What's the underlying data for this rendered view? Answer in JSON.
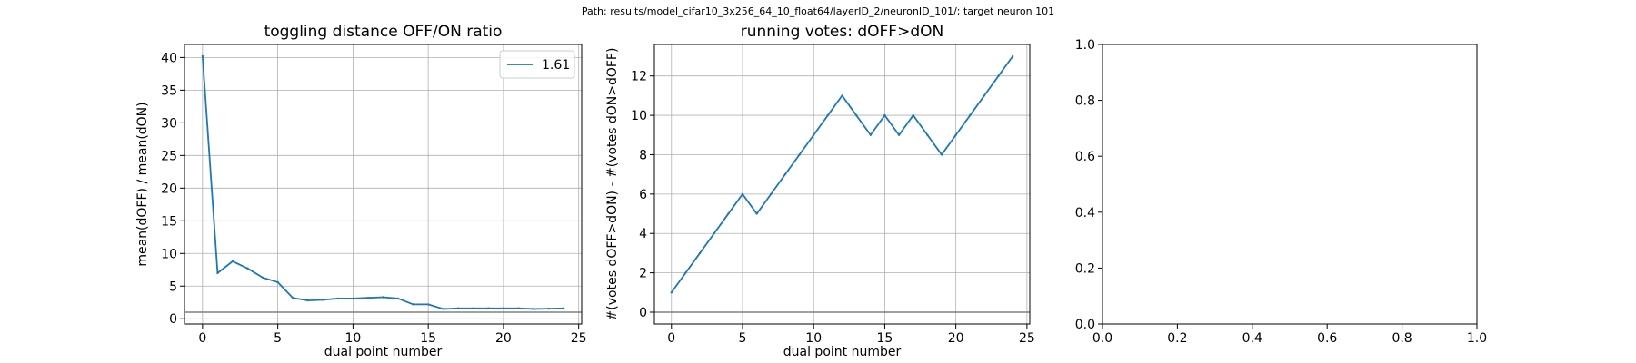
{
  "suptitle": "Path: results/model_cifar10_3x256_64_10_float64/layerID_2/neuronID_101/; target neuron 101",
  "chart_data": [
    {
      "type": "line",
      "title": "toggling distance OFF/ON ratio",
      "xlabel": "dual point number",
      "ylabel": "mean(dOFF) / mean(dON)",
      "xlim": [
        -1.2,
        25.2
      ],
      "ylim": [
        -0.8,
        42
      ],
      "xticks": [
        0,
        5,
        10,
        15,
        20,
        25
      ],
      "yticks": [
        0,
        5,
        10,
        15,
        20,
        25,
        30,
        35,
        40
      ],
      "grid": true,
      "hline": {
        "y": 1,
        "color": "#808080"
      },
      "legend": {
        "placement": "top-right",
        "entries": [
          "1.61"
        ]
      },
      "series": [
        {
          "name": "1.61",
          "color": "#1f77b4",
          "x": [
            0,
            1,
            2,
            3,
            4,
            5,
            6,
            7,
            8,
            9,
            10,
            11,
            12,
            13,
            14,
            15,
            16,
            17,
            18,
            19,
            20,
            21,
            22,
            23,
            24
          ],
          "y": [
            40.2,
            7.0,
            8.8,
            7.7,
            6.3,
            5.6,
            3.2,
            2.8,
            2.9,
            3.1,
            3.1,
            3.2,
            3.3,
            3.1,
            2.2,
            2.2,
            1.5,
            1.6,
            1.6,
            1.6,
            1.6,
            1.6,
            1.5,
            1.55,
            1.6
          ]
        }
      ]
    },
    {
      "type": "line",
      "title": "running votes: dOFF>dON",
      "xlabel": "dual point number",
      "ylabel": "#(votes dOFF>dON) - #(votes dON>dOFF)",
      "xlim": [
        -1.2,
        25.2
      ],
      "ylim": [
        -0.6,
        13.6
      ],
      "xticks": [
        0,
        5,
        10,
        15,
        20,
        25
      ],
      "yticks": [
        0,
        2,
        4,
        6,
        8,
        10,
        12
      ],
      "grid": true,
      "hline": {
        "y": 0,
        "color": "#808080"
      },
      "series": [
        {
          "color": "#1f77b4",
          "x": [
            0,
            1,
            2,
            3,
            4,
            5,
            6,
            7,
            8,
            9,
            10,
            11,
            12,
            13,
            14,
            15,
            16,
            17,
            18,
            19,
            20,
            21,
            22,
            23,
            24
          ],
          "y": [
            1,
            2,
            3,
            4,
            5,
            6,
            5,
            6,
            7,
            8,
            9,
            10,
            11,
            10,
            9,
            10,
            9,
            10,
            9,
            8,
            9,
            10,
            11,
            12,
            13
          ]
        }
      ]
    },
    {
      "type": "line",
      "title": "",
      "xlim": [
        0,
        1
      ],
      "ylim": [
        0,
        1
      ],
      "xticks": [
        "0.0",
        "0.2",
        "0.4",
        "0.6",
        "0.8",
        "1.0"
      ],
      "yticks": [
        "0.0",
        "0.2",
        "0.4",
        "0.6",
        "0.8",
        "1.0"
      ],
      "grid": false,
      "series": []
    }
  ]
}
